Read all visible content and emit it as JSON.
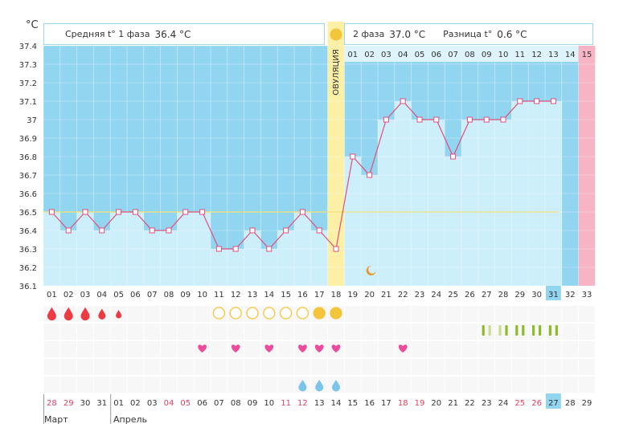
{
  "header": {
    "phase1_label": "Средняя t° 1 фаза",
    "phase1_value": "36.4 °C",
    "phase2_label": "2 фаза",
    "phase2_value": "37.0 °C",
    "diff_label": "Разница t°",
    "diff_value": "0.6 °C"
  },
  "unit_label": "°C",
  "ovulation_label": "ОВУЛЯЦИЯ",
  "months": [
    "Март",
    "Апрель"
  ],
  "colors": {
    "phase1_bg": "#91d5f1",
    "bar_fill": "#cdeefb",
    "ovulation": "#fcefa6",
    "line": "#e0507a",
    "late_day": "#f6b4c4",
    "menstruation": "#ec3b43",
    "mucus_circle": "#f3c53b",
    "heart": "#ea4d9c",
    "drop_blue": "#7cc4ea",
    "test_green": "#8fba2c",
    "average_line": "#f3e37a"
  },
  "chart_data": {
    "type": "line",
    "ylabel": "°C",
    "ylim": [
      36.1,
      37.4
    ],
    "y_ticks": [
      "36.1",
      "36.2",
      "36.3",
      "36.4",
      "36.5",
      "36.6",
      "36.7",
      "36.8",
      "36.9",
      "37",
      "37.1",
      "37.2",
      "37.3",
      "37.4"
    ],
    "cycle_days": [
      "01",
      "02",
      "03",
      "04",
      "05",
      "06",
      "07",
      "08",
      "09",
      "10",
      "11",
      "12",
      "13",
      "14",
      "15",
      "16",
      "17",
      "18",
      "19",
      "20",
      "21",
      "22",
      "23",
      "24",
      "25",
      "26",
      "27",
      "28",
      "29",
      "30",
      "31",
      "32",
      "33"
    ],
    "calendar_dates": [
      "28",
      "29",
      "30",
      "31",
      "01",
      "02",
      "03",
      "04",
      "05",
      "06",
      "07",
      "08",
      "09",
      "10",
      "11",
      "12",
      "13",
      "14",
      "15",
      "16",
      "17",
      "18",
      "19",
      "20",
      "21",
      "22",
      "23",
      "24",
      "25",
      "26",
      "27",
      "28",
      "29"
    ],
    "red_dates_index": [
      0,
      1,
      7,
      8,
      14,
      15,
      21,
      22,
      28,
      29
    ],
    "highlight_cycle_day_index": 30,
    "highlight_date_index": 30,
    "month_start_index": [
      0,
      4
    ],
    "phase2_days": [
      "01",
      "02",
      "03",
      "04",
      "05",
      "06",
      "07",
      "08",
      "09",
      "10",
      "11",
      "12",
      "13",
      "14",
      "15"
    ],
    "temperatures": [
      36.5,
      36.4,
      36.5,
      36.4,
      36.5,
      36.5,
      36.4,
      36.4,
      36.5,
      36.5,
      36.3,
      36.3,
      36.4,
      36.3,
      36.4,
      36.5,
      36.4,
      36.3,
      36.8,
      36.7,
      37.0,
      37.1,
      37.0,
      37.0,
      36.8,
      37.0,
      37.0,
      37.0,
      37.1,
      37.1,
      37.1,
      null,
      null
    ],
    "ovulation_day_index": 17,
    "coverline": 36.5,
    "phase1_average": 36.4,
    "phase2_average": 37.0,
    "moon_day_index": 19,
    "menstruation": [
      {
        "day": 0,
        "size": 3
      },
      {
        "day": 1,
        "size": 3
      },
      {
        "day": 2,
        "size": 3
      },
      {
        "day": 3,
        "size": 2
      },
      {
        "day": 4,
        "size": 1
      }
    ],
    "mucus": [
      {
        "day": 10,
        "filled": false
      },
      {
        "day": 11,
        "filled": false
      },
      {
        "day": 12,
        "filled": false
      },
      {
        "day": 13,
        "filled": false
      },
      {
        "day": 14,
        "filled": false
      },
      {
        "day": 15,
        "filled": false
      },
      {
        "day": 16,
        "filled": true
      },
      {
        "day": 17,
        "filled": true
      }
    ],
    "intercourse_days": [
      9,
      11,
      13,
      15,
      16,
      17,
      21
    ],
    "drop_days": [
      15,
      16,
      17
    ],
    "tests": [
      {
        "day": 26,
        "strong": true
      },
      {
        "day": 26,
        "strong": false
      },
      {
        "day": 27,
        "strong": false
      },
      {
        "day": 27,
        "strong": true
      },
      {
        "day": 28,
        "strong": true
      },
      {
        "day": 28,
        "strong": true
      },
      {
        "day": 29,
        "strong": true
      },
      {
        "day": 29,
        "strong": true
      },
      {
        "day": 30,
        "strong": true
      },
      {
        "day": 30,
        "strong": true
      }
    ]
  }
}
